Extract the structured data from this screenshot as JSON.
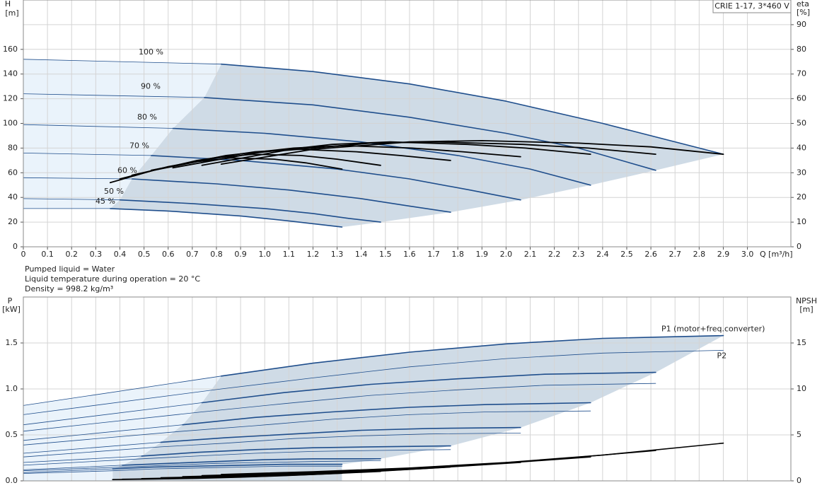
{
  "chart_data": [
    {
      "type": "line",
      "title": "CRIE 1-17, 3*460 V",
      "x_label": "Q [m³/h]",
      "y_label": "H",
      "y_unit": "[m]",
      "y2_label": "eta",
      "y2_unit": "[%]",
      "xlim": [
        0,
        3.18
      ],
      "xticks": [
        0,
        0.1,
        0.2,
        0.3,
        0.4,
        0.5,
        0.6,
        0.7,
        0.8,
        0.9,
        {
          "value": 1,
          "label": "1.0"
        },
        1.1,
        1.2,
        1.3,
        1.4,
        1.5,
        1.6,
        1.7,
        1.8,
        1.9,
        {
          "value": 2,
          "label": "2.0"
        },
        2.1,
        2.2,
        2.3,
        2.4,
        2.5,
        2.6,
        2.7,
        2.8,
        2.9,
        {
          "value": 3,
          "label": "3.0"
        }
      ],
      "ylim": [
        0,
        200
      ],
      "yticks": [
        0,
        20,
        40,
        60,
        80,
        100,
        120,
        140,
        160
      ],
      "y2lim": [
        0,
        100
      ],
      "y2ticks": [
        0,
        10,
        20,
        30,
        40,
        50,
        60,
        70,
        80,
        90
      ],
      "grid": true,
      "series": [
        {
          "name": "100 %",
          "color": "#1f4e8c",
          "line_width": 1.6,
          "area": true,
          "x": [
            0,
            0.82,
            1.2,
            1.6,
            2.0,
            2.4,
            2.9
          ],
          "values": [
            152,
            148,
            142,
            132,
            118,
            100,
            75
          ]
        },
        {
          "name": "90 %",
          "color": "#1f4e8c",
          "line_width": 1.6,
          "area": true,
          "x": [
            0,
            0.75,
            1.2,
            1.6,
            2.0,
            2.3,
            2.62
          ],
          "values": [
            124,
            121,
            115,
            105,
            92,
            80,
            62
          ]
        },
        {
          "name": "80 %",
          "color": "#1f4e8c",
          "line_width": 1.6,
          "area": true,
          "x": [
            0,
            0.62,
            1.0,
            1.4,
            1.8,
            2.1,
            2.35
          ],
          "values": [
            99,
            96,
            92,
            85,
            74,
            63,
            50
          ]
        },
        {
          "name": "70 %",
          "color": "#1f4e8c",
          "line_width": 1.6,
          "area": true,
          "x": [
            0,
            0.53,
            0.9,
            1.3,
            1.6,
            1.85,
            2.06
          ],
          "values": [
            76,
            74,
            70,
            63,
            55,
            46,
            38
          ]
        },
        {
          "name": "60 %",
          "color": "#1f4e8c",
          "line_width": 1.6,
          "area": true,
          "x": [
            0,
            0.45,
            0.8,
            1.1,
            1.4,
            1.6,
            1.77
          ],
          "values": [
            56,
            55,
            51,
            46,
            39,
            33,
            28
          ]
        },
        {
          "name": "50 %",
          "color": "#1f4e8c",
          "line_width": 1.6,
          "area": true,
          "x": [
            0,
            0.4,
            0.7,
            1.0,
            1.2,
            1.35,
            1.48
          ],
          "values": [
            39,
            38,
            35,
            31,
            27,
            23,
            20
          ]
        },
        {
          "name": "45 %",
          "color": "#1f4e8c",
          "line_width": 1.6,
          "area": true,
          "x": [
            0,
            0.36,
            0.6,
            0.9,
            1.1,
            1.32
          ],
          "values": [
            31,
            31,
            29,
            25,
            21,
            16
          ]
        },
        {
          "axis": "y2",
          "color": "#000000",
          "line_width": 1.8,
          "x": [
            0.82,
            1.2,
            1.6,
            1.9,
            2.3,
            2.6,
            2.9
          ],
          "values": [
            33.5,
            39.5,
            42.5,
            43,
            42,
            40.5,
            37.5
          ]
        },
        {
          "axis": "y2",
          "color": "#000000",
          "line_width": 1.8,
          "x": [
            0.74,
            1.08,
            1.44,
            1.71,
            2.07,
            2.34,
            2.62
          ],
          "values": [
            33,
            39,
            42,
            42.5,
            41.5,
            40,
            37.5
          ]
        },
        {
          "axis": "y2",
          "color": "#000000",
          "line_width": 1.8,
          "x": [
            0.62,
            0.96,
            1.28,
            1.52,
            1.84,
            2.08,
            2.35
          ],
          "values": [
            32,
            38,
            41.5,
            42.5,
            41.5,
            40,
            37.5
          ]
        },
        {
          "axis": "y2",
          "color": "#000000",
          "line_width": 1.8,
          "x": [
            0.53,
            0.84,
            1.12,
            1.33,
            1.61,
            1.82,
            2.06
          ],
          "values": [
            31,
            37,
            40,
            41,
            40,
            38.5,
            36.5
          ]
        },
        {
          "axis": "y2",
          "color": "#000000",
          "line_width": 1.8,
          "x": [
            0.45,
            0.72,
            0.96,
            1.14,
            1.38,
            1.56,
            1.77
          ],
          "values": [
            29,
            35,
            38.5,
            39.5,
            38.5,
            37,
            35
          ]
        },
        {
          "axis": "y2",
          "color": "#000000",
          "line_width": 1.8,
          "x": [
            0.4,
            0.6,
            0.8,
            0.95,
            1.15,
            1.3,
            1.48
          ],
          "values": [
            27.5,
            32.5,
            36,
            37.5,
            37,
            35.5,
            33
          ]
        },
        {
          "axis": "y2",
          "color": "#000000",
          "line_width": 1.8,
          "x": [
            0.36,
            0.54,
            0.72,
            0.86,
            1.04,
            1.17,
            1.32
          ],
          "values": [
            26,
            31,
            34.5,
            36,
            35.5,
            34,
            31.5
          ]
        }
      ]
    },
    {
      "type": "line",
      "notes": [
        "Pumped liquid = Water",
        "Liquid temperature during operation = 20 °C",
        "Density = 998.2 kg/m³"
      ],
      "y_label": "P",
      "y_unit": "[kW]",
      "y2_label": "NPSH",
      "y2_unit": "[m]",
      "xlim": [
        0,
        3.18
      ],
      "ylim": [
        0,
        2
      ],
      "yticks": [
        {
          "value": 0,
          "label": "0.0"
        },
        0.5,
        {
          "value": 1,
          "label": "1.0"
        },
        1.5
      ],
      "y2lim": [
        0,
        20
      ],
      "y2ticks": [
        0,
        5,
        10,
        15
      ],
      "grid": true,
      "area_to_axis": true,
      "series": [
        {
          "name": "P1 (motor+freq.converter)",
          "color": "#1f4e8c",
          "line_width": 1.6,
          "area": true,
          "x": [
            0,
            0.82,
            1.2,
            1.6,
            2.0,
            2.4,
            2.9
          ],
          "values": [
            0.82,
            1.14,
            1.28,
            1.4,
            1.49,
            1.55,
            1.58
          ]
        },
        {
          "color": "#1f4e8c",
          "line_width": 1.6,
          "area": true,
          "x": [
            0,
            0.74,
            1.08,
            1.44,
            1.8,
            2.16,
            2.62
          ],
          "values": [
            0.61,
            0.85,
            0.96,
            1.05,
            1.11,
            1.16,
            1.18
          ]
        },
        {
          "color": "#1f4e8c",
          "line_width": 1.6,
          "area": true,
          "x": [
            0,
            0.66,
            0.96,
            1.28,
            1.6,
            1.92,
            2.35
          ],
          "values": [
            0.44,
            0.61,
            0.69,
            0.75,
            0.8,
            0.83,
            0.85
          ]
        },
        {
          "color": "#1f4e8c",
          "line_width": 1.6,
          "area": true,
          "x": [
            0,
            0.57,
            0.84,
            1.12,
            1.4,
            1.68,
            2.06
          ],
          "values": [
            0.3,
            0.42,
            0.47,
            0.51,
            0.55,
            0.57,
            0.58
          ]
        },
        {
          "color": "#1f4e8c",
          "line_width": 1.6,
          "area": true,
          "x": [
            0,
            0.49,
            0.72,
            0.96,
            1.2,
            1.44,
            1.77
          ],
          "values": [
            0.2,
            0.27,
            0.31,
            0.34,
            0.36,
            0.37,
            0.38
          ]
        },
        {
          "color": "#1f4e8c",
          "line_width": 1.6,
          "area": true,
          "x": [
            0,
            0.41,
            0.6,
            0.8,
            1.0,
            1.2,
            1.48
          ],
          "values": [
            0.12,
            0.17,
            0.19,
            0.21,
            0.23,
            0.24,
            0.24
          ]
        },
        {
          "color": "#1f4e8c",
          "line_width": 1.6,
          "area": true,
          "x": [
            0,
            0.37,
            0.54,
            0.72,
            0.9,
            1.08,
            1.32
          ],
          "values": [
            0.09,
            0.13,
            0.15,
            0.16,
            0.17,
            0.18,
            0.18
          ]
        },
        {
          "name": "P2",
          "color": "#1f4e8c",
          "line_width": 0.8,
          "x": [
            0,
            0.82,
            1.2,
            1.6,
            2.0,
            2.4,
            2.9
          ],
          "values": [
            0.72,
            1.0,
            1.12,
            1.24,
            1.33,
            1.39,
            1.42
          ]
        },
        {
          "color": "#1f4e8c",
          "line_width": 0.8,
          "x": [
            0,
            0.74,
            1.08,
            1.44,
            1.8,
            2.16,
            2.62
          ],
          "values": [
            0.54,
            0.75,
            0.84,
            0.93,
            0.99,
            1.04,
            1.06
          ]
        },
        {
          "color": "#1f4e8c",
          "line_width": 0.8,
          "x": [
            0,
            0.66,
            0.96,
            1.28,
            1.6,
            1.92,
            2.35
          ],
          "values": [
            0.39,
            0.54,
            0.6,
            0.67,
            0.72,
            0.75,
            0.76
          ]
        },
        {
          "color": "#1f4e8c",
          "line_width": 0.8,
          "x": [
            0,
            0.57,
            0.84,
            1.12,
            1.4,
            1.68,
            2.06
          ],
          "values": [
            0.26,
            0.37,
            0.41,
            0.46,
            0.49,
            0.51,
            0.52
          ]
        },
        {
          "color": "#1f4e8c",
          "line_width": 0.8,
          "x": [
            0,
            0.49,
            0.72,
            0.96,
            1.2,
            1.44,
            1.77
          ],
          "values": [
            0.17,
            0.24,
            0.27,
            0.3,
            0.32,
            0.33,
            0.34
          ]
        },
        {
          "color": "#1f4e8c",
          "line_width": 0.8,
          "x": [
            0,
            0.41,
            0.6,
            0.8,
            1.0,
            1.2,
            1.48
          ],
          "values": [
            0.11,
            0.15,
            0.17,
            0.19,
            0.2,
            0.21,
            0.22
          ]
        },
        {
          "color": "#1f4e8c",
          "line_width": 0.8,
          "x": [
            0,
            0.37,
            0.54,
            0.72,
            0.9,
            1.08,
            1.32
          ],
          "values": [
            0.08,
            0.11,
            0.13,
            0.14,
            0.15,
            0.16,
            0.16
          ]
        },
        {
          "axis": "y2",
          "color": "#000000",
          "line_width": 1.6,
          "x": [
            0.82,
            1.2,
            1.6,
            2.0,
            2.4,
            2.9
          ],
          "values": [
            0.7,
            1.0,
            1.4,
            2.0,
            2.8,
            4.1
          ]
        },
        {
          "axis": "y2",
          "color": "#000000",
          "line_width": 1.6,
          "x": [
            0.74,
            1.08,
            1.44,
            1.8,
            2.16,
            2.62
          ],
          "values": [
            0.57,
            0.81,
            1.13,
            1.62,
            2.27,
            3.3
          ]
        },
        {
          "axis": "y2",
          "color": "#000000",
          "line_width": 1.6,
          "x": [
            0.66,
            0.96,
            1.28,
            1.6,
            1.92,
            2.35
          ],
          "values": [
            0.45,
            0.64,
            0.9,
            1.28,
            1.79,
            2.6
          ]
        },
        {
          "axis": "y2",
          "color": "#000000",
          "line_width": 1.6,
          "x": [
            0.57,
            0.84,
            1.12,
            1.4,
            1.68,
            2.06
          ],
          "values": [
            0.34,
            0.49,
            0.69,
            0.98,
            1.37,
            2.0
          ]
        },
        {
          "axis": "y2",
          "color": "#000000",
          "line_width": 1.6,
          "x": [
            0.49,
            0.72,
            0.96,
            1.2,
            1.44,
            1.77
          ],
          "values": [
            0.25,
            0.36,
            0.5,
            0.72,
            1.0,
            1.5
          ]
        },
        {
          "axis": "y2",
          "color": "#000000",
          "line_width": 1.6,
          "x": [
            0.41,
            0.6,
            0.8,
            1.0,
            1.2,
            1.48
          ],
          "values": [
            0.18,
            0.25,
            0.35,
            0.5,
            0.7,
            1.02
          ]
        },
        {
          "axis": "y2",
          "color": "#000000",
          "line_width": 1.6,
          "x": [
            0.37,
            0.54,
            0.72,
            0.9,
            1.08,
            1.32
          ],
          "values": [
            0.14,
            0.2,
            0.28,
            0.4,
            0.56,
            0.82
          ]
        }
      ]
    }
  ]
}
